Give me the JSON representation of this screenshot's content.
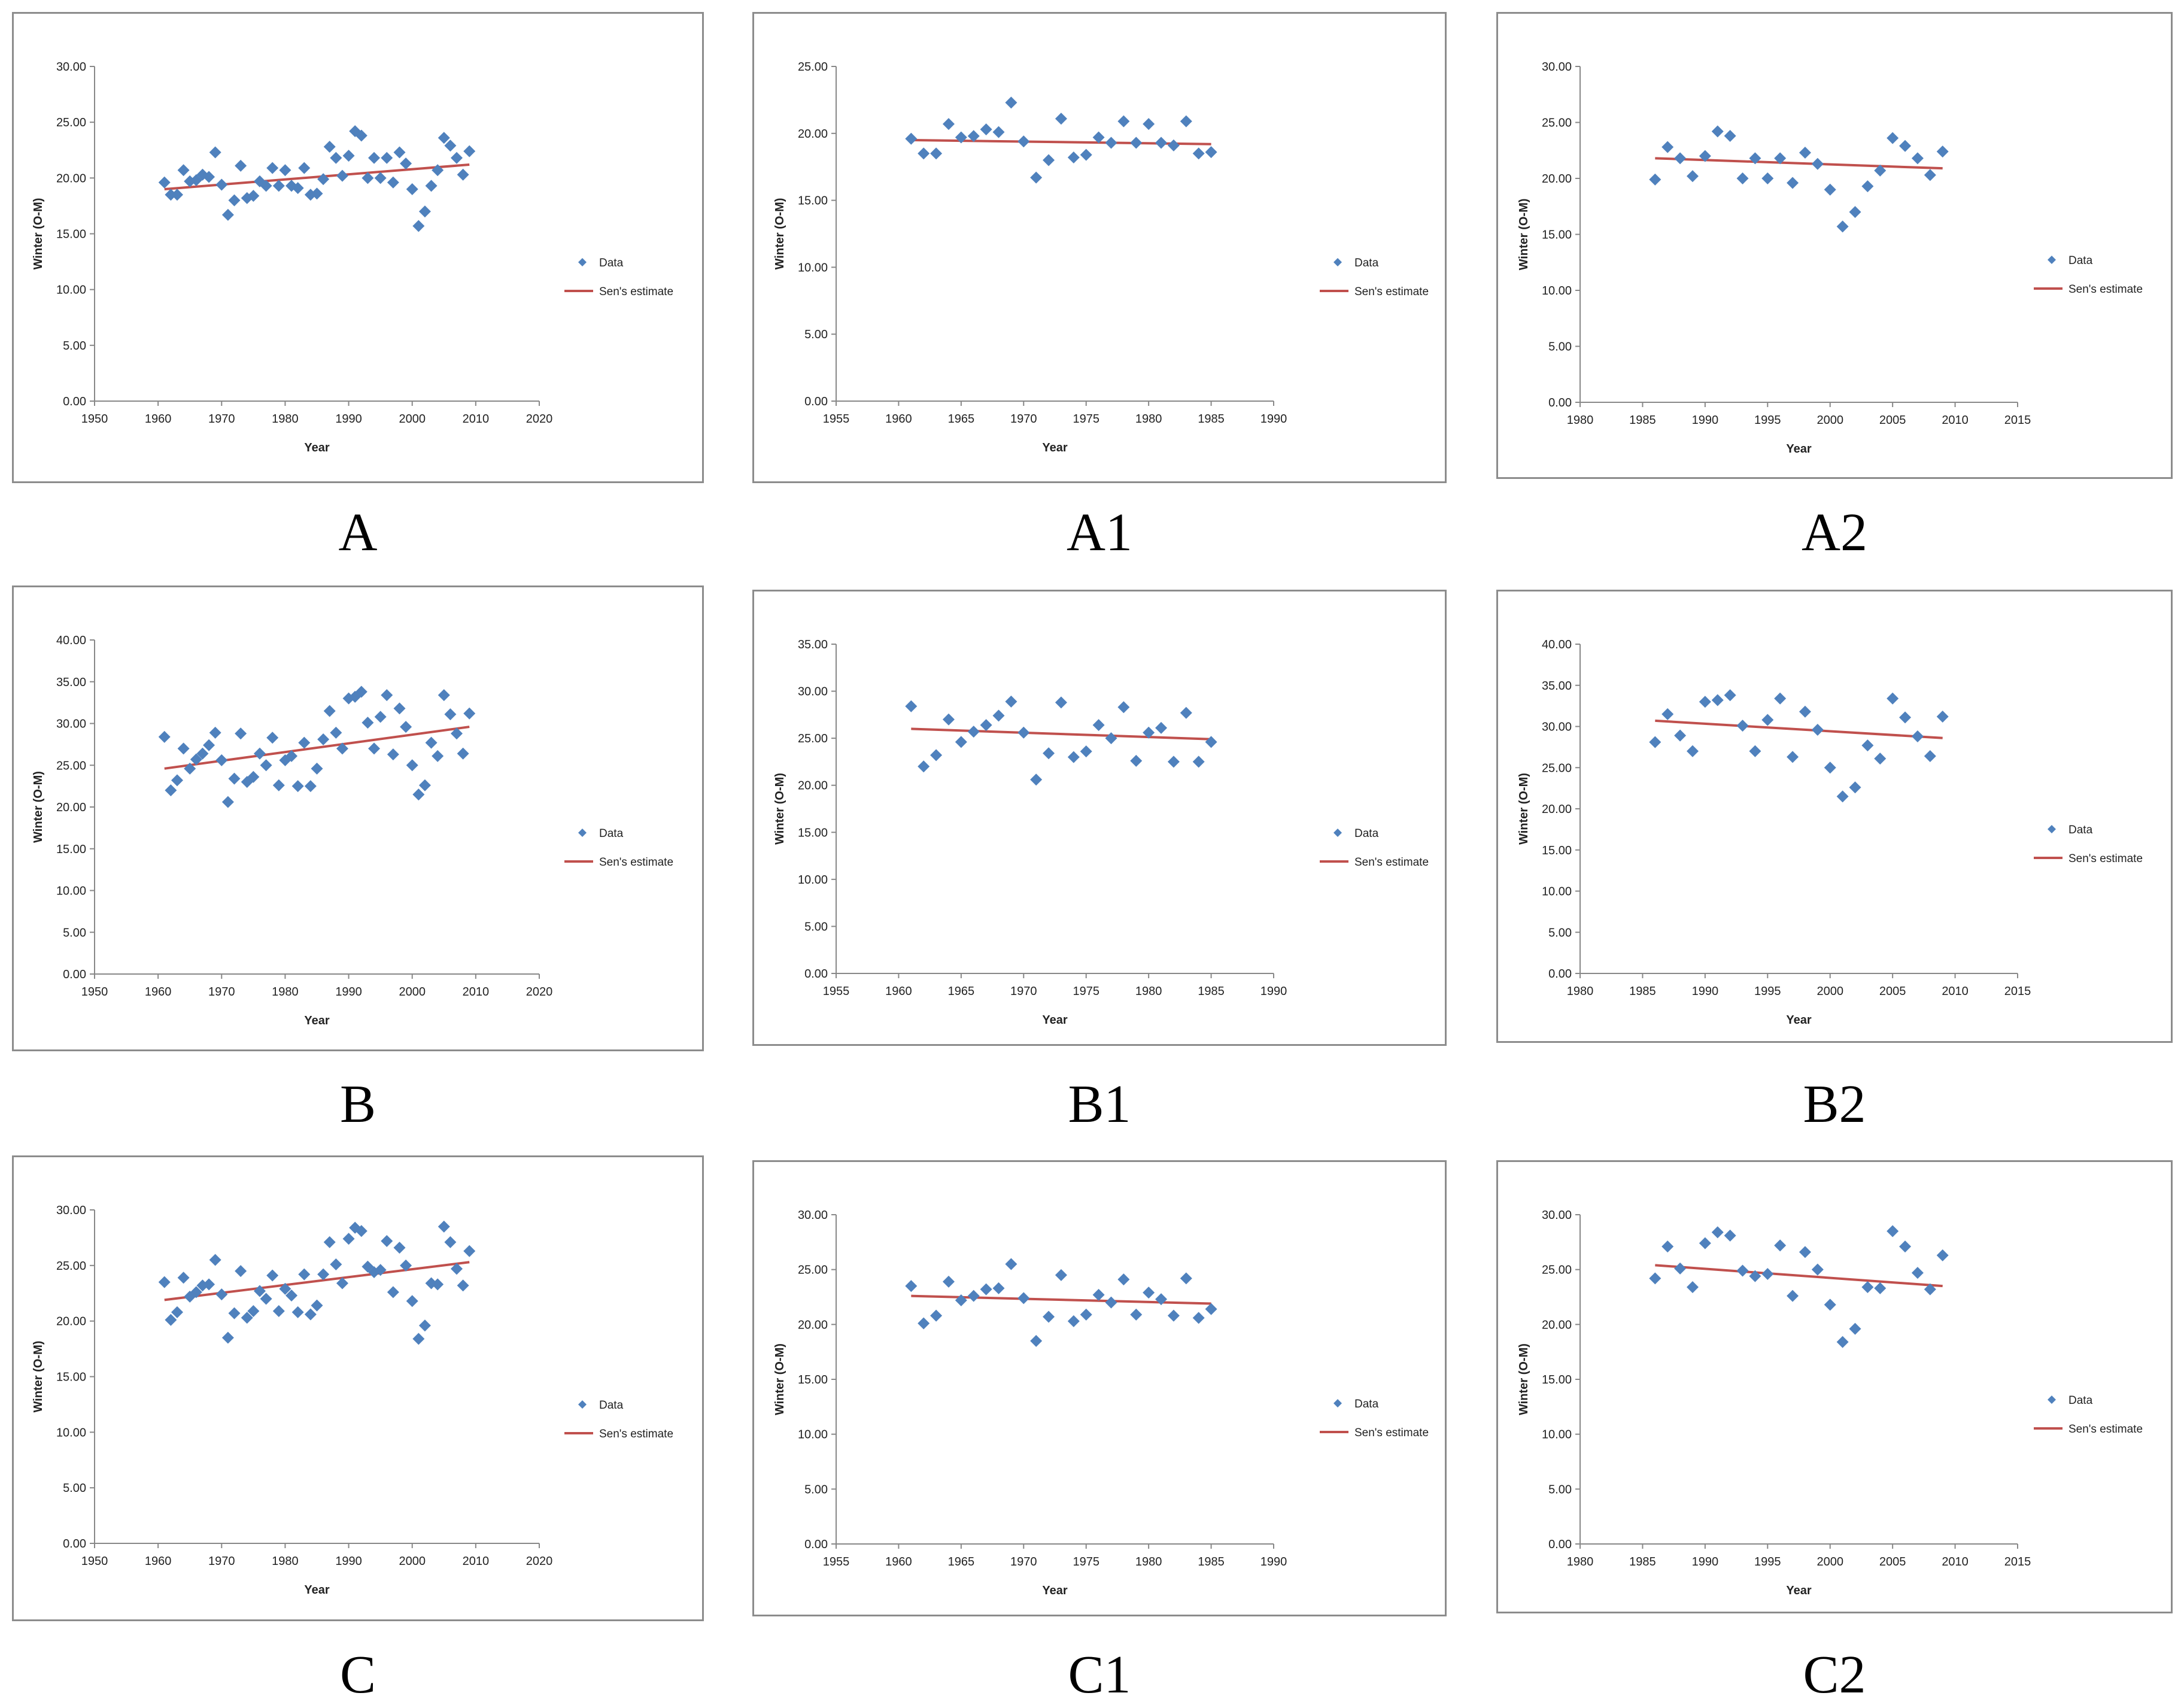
{
  "colors": {
    "data": "#4f81bd",
    "trend": "#c0504d",
    "axis": "#888888",
    "frame": "#8c8c8c"
  },
  "charts": [
    {
      "id": "A",
      "caption": "A",
      "ylabel": "Winter (O-M)",
      "xlabel": "Year",
      "legend_data": "Data",
      "legend_trend": "Sen's estimate",
      "xticks": [
        "1950",
        "1960",
        "1970",
        "1980",
        "1990",
        "2000",
        "2010",
        "2020"
      ],
      "yticks": [
        "0.00",
        "5.00",
        "10.00",
        "15.00",
        "20.00",
        "25.00",
        "30.00"
      ]
    },
    {
      "id": "A1",
      "caption": "A1",
      "ylabel": "Winter (O-M)",
      "xlabel": "Year",
      "legend_data": "Data",
      "legend_trend": "Sen's estimate",
      "xticks": [
        "1955",
        "1960",
        "1965",
        "1970",
        "1975",
        "1980",
        "1985",
        "1990"
      ],
      "yticks": [
        "0.00",
        "5.00",
        "10.00",
        "15.00",
        "20.00",
        "25.00"
      ]
    },
    {
      "id": "A2",
      "caption": "A2",
      "ylabel": "Winter (O-M)",
      "xlabel": "Year",
      "legend_data": "Data",
      "legend_trend": "Sen's estimate",
      "xticks": [
        "1980",
        "1985",
        "1990",
        "1995",
        "2000",
        "2005",
        "2010",
        "2015"
      ],
      "yticks": [
        "0.00",
        "5.00",
        "10.00",
        "15.00",
        "20.00",
        "25.00",
        "30.00"
      ]
    },
    {
      "id": "B",
      "caption": "B",
      "ylabel": "Winter (O-M)",
      "xlabel": "Year",
      "legend_data": "Data",
      "legend_trend": "Sen's estimate",
      "xticks": [
        "1950",
        "1960",
        "1970",
        "1980",
        "1990",
        "2000",
        "2010",
        "2020"
      ],
      "yticks": [
        "0.00",
        "5.00",
        "10.00",
        "15.00",
        "20.00",
        "25.00",
        "30.00",
        "35.00",
        "40.00"
      ]
    },
    {
      "id": "B1",
      "caption": "B1",
      "ylabel": "Winter (O-M)",
      "xlabel": "Year",
      "legend_data": "Data",
      "legend_trend": "Sen's estimate",
      "xticks": [
        "1955",
        "1960",
        "1965",
        "1970",
        "1975",
        "1980",
        "1985",
        "1990"
      ],
      "yticks": [
        "0.00",
        "5.00",
        "10.00",
        "15.00",
        "20.00",
        "25.00",
        "30.00",
        "35.00"
      ]
    },
    {
      "id": "B2",
      "caption": "B2",
      "ylabel": "Winter (O-M)",
      "xlabel": "Year",
      "legend_data": "Data",
      "legend_trend": "Sen's estimate",
      "xticks": [
        "1980",
        "1985",
        "1990",
        "1995",
        "2000",
        "2005",
        "2010",
        "2015"
      ],
      "yticks": [
        "0.00",
        "5.00",
        "10.00",
        "15.00",
        "20.00",
        "25.00",
        "30.00",
        "35.00",
        "40.00"
      ]
    },
    {
      "id": "C",
      "caption": "C",
      "ylabel": "Winter (O-M)",
      "xlabel": "Year",
      "legend_data": "Data",
      "legend_trend": "Sen's estimate",
      "xticks": [
        "1950",
        "1960",
        "1970",
        "1980",
        "1990",
        "2000",
        "2010",
        "2020"
      ],
      "yticks": [
        "0.00",
        "5.00",
        "10.00",
        "15.00",
        "20.00",
        "25.00",
        "30.00"
      ]
    },
    {
      "id": "C1",
      "caption": "C1",
      "ylabel": "Winter (O-M)",
      "xlabel": "Year",
      "legend_data": "Data",
      "legend_trend": "Sen's estimate",
      "xticks": [
        "1955",
        "1960",
        "1965",
        "1970",
        "1975",
        "1980",
        "1985",
        "1990"
      ],
      "yticks": [
        "0.00",
        "5.00",
        "10.00",
        "15.00",
        "20.00",
        "25.00",
        "30.00"
      ]
    },
    {
      "id": "C2",
      "caption": "C2",
      "ylabel": "Winter (O-M)",
      "xlabel": "Year",
      "legend_data": "Data",
      "legend_trend": "Sen's estimate",
      "xticks": [
        "1980",
        "1985",
        "1990",
        "1995",
        "2000",
        "2005",
        "2010",
        "2015"
      ],
      "yticks": [
        "0.00",
        "5.00",
        "10.00",
        "15.00",
        "20.00",
        "25.00",
        "30.00"
      ]
    }
  ],
  "chart_data": [
    {
      "id": "A",
      "type": "scatter",
      "xlabel": "Year",
      "ylabel": "Winter (O-M)",
      "xlim": [
        1950,
        2020
      ],
      "ylim": [
        0,
        30
      ],
      "series": [
        {
          "name": "Data",
          "x": [
            1961,
            1962,
            1963,
            1964,
            1965,
            1966,
            1967,
            1968,
            1969,
            1970,
            1971,
            1972,
            1973,
            1974,
            1975,
            1976,
            1977,
            1978,
            1979,
            1980,
            1981,
            1982,
            1983,
            1984,
            1985,
            1986,
            1987,
            1988,
            1989,
            1990,
            1991,
            1992,
            1993,
            1994,
            1995,
            1996,
            1997,
            1998,
            1999,
            2000,
            2001,
            2002,
            2003,
            2004,
            2005,
            2006,
            2007,
            2008,
            2009
          ],
          "y": [
            19.6,
            18.5,
            18.5,
            20.7,
            19.7,
            19.8,
            20.3,
            20.1,
            22.3,
            19.4,
            16.7,
            18.0,
            21.1,
            18.2,
            18.4,
            19.7,
            19.3,
            20.9,
            19.3,
            20.7,
            19.3,
            19.1,
            20.9,
            18.5,
            18.6,
            19.9,
            22.8,
            21.8,
            20.2,
            22.0,
            24.2,
            23.8,
            20.0,
            21.8,
            20.0,
            21.8,
            19.6,
            22.3,
            21.3,
            19.0,
            15.7,
            17.0,
            19.3,
            20.7,
            23.6,
            22.9,
            21.8,
            20.3,
            22.4
          ]
        },
        {
          "name": "Sen's estimate",
          "x": [
            1961,
            2009
          ],
          "y": [
            19.0,
            21.2
          ]
        }
      ]
    },
    {
      "id": "A1",
      "type": "scatter",
      "xlabel": "Year",
      "ylabel": "Winter (O-M)",
      "xlim": [
        1955,
        1990
      ],
      "ylim": [
        0,
        25
      ],
      "series": [
        {
          "name": "Data",
          "x": [
            1961,
            1962,
            1963,
            1964,
            1965,
            1966,
            1967,
            1968,
            1969,
            1970,
            1971,
            1972,
            1973,
            1974,
            1975,
            1976,
            1977,
            1978,
            1979,
            1980,
            1981,
            1982,
            1983,
            1984,
            1985
          ],
          "y": [
            19.6,
            18.5,
            18.5,
            20.7,
            19.7,
            19.8,
            20.3,
            20.1,
            22.3,
            19.4,
            16.7,
            18.0,
            21.1,
            18.2,
            18.4,
            19.7,
            19.3,
            20.9,
            19.3,
            20.7,
            19.3,
            19.1,
            20.9,
            18.5,
            18.6
          ]
        },
        {
          "name": "Sen's estimate",
          "x": [
            1961,
            1985
          ],
          "y": [
            19.5,
            19.2
          ]
        }
      ]
    },
    {
      "id": "A2",
      "type": "scatter",
      "xlabel": "Year",
      "ylabel": "Winter (O-M)",
      "xlim": [
        1980,
        2015
      ],
      "ylim": [
        0,
        30
      ],
      "series": [
        {
          "name": "Data",
          "x": [
            1986,
            1987,
            1988,
            1989,
            1990,
            1991,
            1992,
            1993,
            1994,
            1995,
            1996,
            1997,
            1998,
            1999,
            2000,
            2001,
            2002,
            2003,
            2004,
            2005,
            2006,
            2007,
            2008,
            2009
          ],
          "y": [
            19.9,
            22.8,
            21.8,
            20.2,
            22.0,
            24.2,
            23.8,
            20.0,
            21.8,
            20.0,
            21.8,
            19.6,
            22.3,
            21.3,
            19.0,
            15.7,
            17.0,
            19.3,
            20.7,
            23.6,
            22.9,
            21.8,
            20.3,
            22.4
          ]
        },
        {
          "name": "Sen's estimate",
          "x": [
            1986,
            2009
          ],
          "y": [
            21.8,
            20.9
          ]
        }
      ]
    },
    {
      "id": "B",
      "type": "scatter",
      "xlabel": "Year",
      "ylabel": "Winter (O-M)",
      "xlim": [
        1950,
        2020
      ],
      "ylim": [
        0,
        40
      ],
      "series": [
        {
          "name": "Data",
          "x": [
            1961,
            1962,
            1963,
            1964,
            1965,
            1966,
            1967,
            1968,
            1969,
            1970,
            1971,
            1972,
            1973,
            1974,
            1975,
            1976,
            1977,
            1978,
            1979,
            1980,
            1981,
            1982,
            1983,
            1984,
            1985,
            1986,
            1987,
            1988,
            1989,
            1990,
            1991,
            1992,
            1993,
            1994,
            1995,
            1996,
            1997,
            1998,
            1999,
            2000,
            2001,
            2002,
            2003,
            2004,
            2005,
            2006,
            2007,
            2008,
            2009
          ],
          "y": [
            28.4,
            22.0,
            23.2,
            27.0,
            24.6,
            25.7,
            26.4,
            27.4,
            28.9,
            25.6,
            20.6,
            23.4,
            28.8,
            23.0,
            23.6,
            26.4,
            25.0,
            28.3,
            22.6,
            25.6,
            26.1,
            22.5,
            27.7,
            22.5,
            24.6,
            28.1,
            31.5,
            28.9,
            27.0,
            33.0,
            33.2,
            33.8,
            30.1,
            27.0,
            30.8,
            33.4,
            26.3,
            31.8,
            29.6,
            25.0,
            21.5,
            22.6,
            27.7,
            26.1,
            33.4,
            31.1,
            28.8,
            26.4,
            31.2
          ]
        },
        {
          "name": "Sen's estimate",
          "x": [
            1961,
            2009
          ],
          "y": [
            24.6,
            29.6
          ]
        }
      ]
    },
    {
      "id": "B1",
      "type": "scatter",
      "xlabel": "Year",
      "ylabel": "Winter (O-M)",
      "xlim": [
        1955,
        1990
      ],
      "ylim": [
        0,
        35
      ],
      "series": [
        {
          "name": "Data",
          "x": [
            1961,
            1962,
            1963,
            1964,
            1965,
            1966,
            1967,
            1968,
            1969,
            1970,
            1971,
            1972,
            1973,
            1974,
            1975,
            1976,
            1977,
            1978,
            1979,
            1980,
            1981,
            1982,
            1983,
            1984,
            1985
          ],
          "y": [
            28.4,
            22.0,
            23.2,
            27.0,
            24.6,
            25.7,
            26.4,
            27.4,
            28.9,
            25.6,
            20.6,
            23.4,
            28.8,
            23.0,
            23.6,
            26.4,
            25.0,
            28.3,
            22.6,
            25.6,
            26.1,
            22.5,
            27.7,
            22.5,
            24.6
          ]
        },
        {
          "name": "Sen's estimate",
          "x": [
            1961,
            1985
          ],
          "y": [
            26.0,
            24.9
          ]
        }
      ]
    },
    {
      "id": "B2",
      "type": "scatter",
      "xlabel": "Year",
      "ylabel": "Winter (O-M)",
      "xlim": [
        1980,
        2015
      ],
      "ylim": [
        0,
        40
      ],
      "series": [
        {
          "name": "Data",
          "x": [
            1986,
            1987,
            1988,
            1989,
            1990,
            1991,
            1992,
            1993,
            1994,
            1995,
            1996,
            1997,
            1998,
            1999,
            2000,
            2001,
            2002,
            2003,
            2004,
            2005,
            2006,
            2007,
            2008,
            2009
          ],
          "y": [
            28.1,
            31.5,
            28.9,
            27.0,
            33.0,
            33.2,
            33.8,
            30.1,
            27.0,
            30.8,
            33.4,
            26.3,
            31.8,
            29.6,
            25.0,
            21.5,
            22.6,
            27.7,
            26.1,
            33.4,
            31.1,
            28.8,
            26.4,
            31.2
          ]
        },
        {
          "name": "Sen's estimate",
          "x": [
            1986,
            2009
          ],
          "y": [
            30.7,
            28.6
          ]
        }
      ]
    },
    {
      "id": "C",
      "type": "scatter",
      "xlabel": "Year",
      "ylabel": "Winter (O-M)",
      "xlim": [
        1950,
        2020
      ],
      "ylim": [
        0,
        30
      ],
      "series": [
        {
          "name": "Data",
          "x": [
            1961,
            1962,
            1963,
            1964,
            1965,
            1966,
            1967,
            1968,
            1969,
            1970,
            1971,
            1972,
            1973,
            1974,
            1975,
            1976,
            1977,
            1978,
            1979,
            1980,
            1981,
            1982,
            1983,
            1984,
            1985,
            1986,
            1987,
            1988,
            1989,
            1990,
            1991,
            1992,
            1993,
            1994,
            1995,
            1996,
            1997,
            1998,
            1999,
            2000,
            2001,
            2002,
            2003,
            2004,
            2005,
            2006,
            2007,
            2008,
            2009
          ],
          "y": [
            23.5,
            20.1,
            20.8,
            23.9,
            22.2,
            22.6,
            23.2,
            23.3,
            25.5,
            22.4,
            18.5,
            20.7,
            24.5,
            20.3,
            20.9,
            22.7,
            22.0,
            24.1,
            20.9,
            22.9,
            22.3,
            20.8,
            24.2,
            20.6,
            21.4,
            24.2,
            27.1,
            25.1,
            23.4,
            27.4,
            28.4,
            28.1,
            24.9,
            24.4,
            24.6,
            27.2,
            22.6,
            26.6,
            25.0,
            21.8,
            18.4,
            19.6,
            23.4,
            23.3,
            28.5,
            27.1,
            24.7,
            23.2,
            26.3
          ]
        },
        {
          "name": "Sen's estimate",
          "x": [
            1961,
            2009
          ],
          "y": [
            21.9,
            25.3
          ]
        }
      ]
    },
    {
      "id": "C1",
      "type": "scatter",
      "xlabel": "Year",
      "ylabel": "Winter (O-M)",
      "xlim": [
        1955,
        1990
      ],
      "ylim": [
        0,
        30
      ],
      "series": [
        {
          "name": "Data",
          "x": [
            1961,
            1962,
            1963,
            1964,
            1965,
            1966,
            1967,
            1968,
            1969,
            1970,
            1971,
            1972,
            1973,
            1974,
            1975,
            1976,
            1977,
            1978,
            1979,
            1980,
            1981,
            1982,
            1983,
            1984,
            1985
          ],
          "y": [
            23.5,
            20.1,
            20.8,
            23.9,
            22.2,
            22.6,
            23.2,
            23.3,
            25.5,
            22.4,
            18.5,
            20.7,
            24.5,
            20.3,
            20.9,
            22.7,
            22.0,
            24.1,
            20.9,
            22.9,
            22.3,
            20.8,
            24.2,
            20.6,
            21.4
          ]
        },
        {
          "name": "Sen's estimate",
          "x": [
            1961,
            1985
          ],
          "y": [
            22.6,
            21.9
          ]
        }
      ]
    },
    {
      "id": "C2",
      "type": "scatter",
      "xlabel": "Year",
      "ylabel": "Winter (O-M)",
      "xlim": [
        1980,
        2015
      ],
      "ylim": [
        0,
        30
      ],
      "series": [
        {
          "name": "Data",
          "x": [
            1986,
            1987,
            1988,
            1989,
            1990,
            1991,
            1992,
            1993,
            1994,
            1995,
            1996,
            1997,
            1998,
            1999,
            2000,
            2001,
            2002,
            2003,
            2004,
            2005,
            2006,
            2007,
            2008,
            2009
          ],
          "y": [
            24.2,
            27.1,
            25.1,
            23.4,
            27.4,
            28.4,
            28.1,
            24.9,
            24.4,
            24.6,
            27.2,
            22.6,
            26.6,
            25.0,
            21.8,
            18.4,
            19.6,
            23.4,
            23.3,
            28.5,
            27.1,
            24.7,
            23.2,
            26.3
          ]
        },
        {
          "name": "Sen's estimate",
          "x": [
            1986,
            2009
          ],
          "y": [
            25.4,
            23.5
          ]
        }
      ]
    }
  ]
}
